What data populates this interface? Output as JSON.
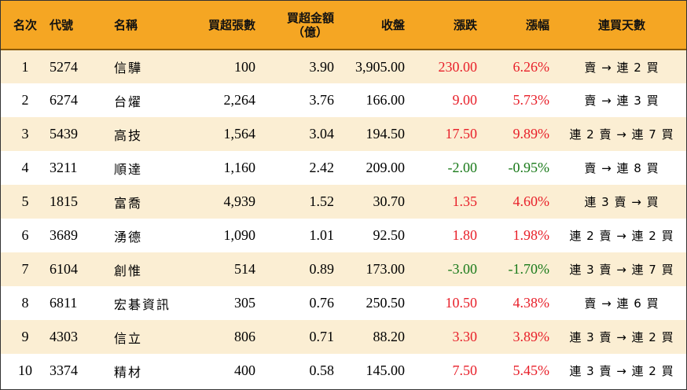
{
  "headers": {
    "rank": "名次",
    "code": "代號",
    "name": "名稱",
    "net_buy_lots": "買超張數",
    "net_buy_amount_line1": "買超金額",
    "net_buy_amount_line2": "（億）",
    "close": "收盤",
    "change": "漲跌",
    "change_pct": "漲幅",
    "consecutive_days": "連買天數"
  },
  "colors": {
    "header_bg": "#f5a623",
    "alt_row_bg": "#fbeed3",
    "up": "#e8202a",
    "down": "#1a7a1a"
  },
  "rows": [
    {
      "rank": "1",
      "code": "5274",
      "name": "信驊",
      "lots": "100",
      "amount": "3.90",
      "close": "3,905.00",
      "change": "230.00",
      "pct": "6.26%",
      "streak": "賣 → 連 2 買",
      "dir": "up"
    },
    {
      "rank": "2",
      "code": "6274",
      "name": "台燿",
      "lots": "2,264",
      "amount": "3.76",
      "close": "166.00",
      "change": "9.00",
      "pct": "5.73%",
      "streak": "賣 → 連 3 買",
      "dir": "up"
    },
    {
      "rank": "3",
      "code": "5439",
      "name": "高技",
      "lots": "1,564",
      "amount": "3.04",
      "close": "194.50",
      "change": "17.50",
      "pct": "9.89%",
      "streak": "連 2 賣 → 連 7 買",
      "dir": "up"
    },
    {
      "rank": "4",
      "code": "3211",
      "name": "順達",
      "lots": "1,160",
      "amount": "2.42",
      "close": "209.00",
      "change": "-2.00",
      "pct": "-0.95%",
      "streak": "賣 → 連 8 買",
      "dir": "down"
    },
    {
      "rank": "5",
      "code": "1815",
      "name": "富喬",
      "lots": "4,939",
      "amount": "1.52",
      "close": "30.70",
      "change": "1.35",
      "pct": "4.60%",
      "streak": "連 3 賣 → 買",
      "dir": "up"
    },
    {
      "rank": "6",
      "code": "3689",
      "name": "湧德",
      "lots": "1,090",
      "amount": "1.01",
      "close": "92.50",
      "change": "1.80",
      "pct": "1.98%",
      "streak": "連 2 賣 → 連 2 買",
      "dir": "up"
    },
    {
      "rank": "7",
      "code": "6104",
      "name": "創惟",
      "lots": "514",
      "amount": "0.89",
      "close": "173.00",
      "change": "-3.00",
      "pct": "-1.70%",
      "streak": "連 3 賣 → 連 7 買",
      "dir": "down"
    },
    {
      "rank": "8",
      "code": "6811",
      "name": "宏碁資訊",
      "lots": "305",
      "amount": "0.76",
      "close": "250.50",
      "change": "10.50",
      "pct": "4.38%",
      "streak": "賣 → 連 6 買",
      "dir": "up"
    },
    {
      "rank": "9",
      "code": "4303",
      "name": "信立",
      "lots": "806",
      "amount": "0.71",
      "close": "88.20",
      "change": "3.30",
      "pct": "3.89%",
      "streak": "連 3 賣 → 連 2 買",
      "dir": "up"
    },
    {
      "rank": "10",
      "code": "3374",
      "name": "精材",
      "lots": "400",
      "amount": "0.58",
      "close": "145.00",
      "change": "7.50",
      "pct": "5.45%",
      "streak": "連 3 賣 → 連 2 買",
      "dir": "up"
    }
  ]
}
